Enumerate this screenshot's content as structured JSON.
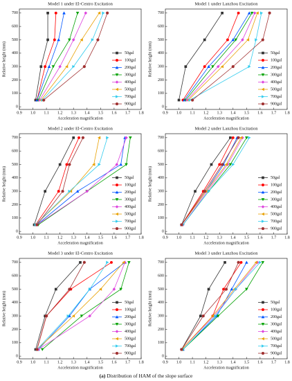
{
  "chart_data": [
    {
      "type": "line",
      "title": "Model 1 under El-Centro Excitation",
      "x_label": "Acceleration magnification",
      "y_label": "Relative height (mm)",
      "xlim": [
        0.9,
        1.8
      ],
      "ylim": [
        -20,
        730
      ],
      "xticks": [
        0.9,
        {
          "value": 1,
          "label": "1.0"
        },
        1.1,
        1.2,
        1.3,
        1.4,
        1.5,
        1.6,
        1.7,
        1.8
      ],
      "yticks": [
        0,
        100,
        200,
        300,
        400,
        500,
        600,
        700
      ],
      "legend": "lower right",
      "y": [
        50,
        300,
        500,
        700
      ],
      "series": [
        {
          "name": "50gal",
          "color": "#333333",
          "x": [
            1.02,
            1.06,
            1.11,
            1.11
          ]
        },
        {
          "name": "100gal",
          "color": "#ff0000",
          "x": [
            1.03,
            1.09,
            1.16,
            1.17
          ]
        },
        {
          "name": "200gal",
          "color": "#0055ff",
          "x": [
            1.03,
            1.12,
            1.19,
            1.23
          ]
        },
        {
          "name": "300gal",
          "color": "#00a000",
          "x": [
            1.04,
            1.15,
            1.27,
            1.33
          ]
        },
        {
          "name": "400gal",
          "color": "#dd44dd",
          "x": [
            1.05,
            1.2,
            1.3,
            1.39
          ]
        },
        {
          "name": "500gal",
          "color": "#e8a000",
          "x": [
            1.06,
            1.25,
            1.36,
            1.49
          ]
        },
        {
          "name": "700gal",
          "color": "#33ccee",
          "x": [
            1.07,
            1.3,
            1.44,
            1.52
          ]
        },
        {
          "name": "900gal",
          "color": "#a03030",
          "x": [
            1.08,
            1.38,
            1.48,
            1.55
          ]
        }
      ]
    },
    {
      "type": "line",
      "title": "Model 1 under Lanzhou Excitation",
      "x_label": "Acceleration magnification",
      "y_label": "Relative height (mm)",
      "xlim": [
        0.9,
        1.8
      ],
      "ylim": [
        -20,
        730
      ],
      "xticks": [
        0.9,
        {
          "value": 1,
          "label": "1.0"
        },
        1.1,
        1.2,
        1.3,
        1.4,
        1.5,
        1.6,
        1.7,
        1.8
      ],
      "yticks": [
        0,
        100,
        200,
        300,
        400,
        500,
        600,
        700
      ],
      "legend": "lower right",
      "y": [
        50,
        300,
        500,
        700
      ],
      "series": [
        {
          "name": "50gal",
          "color": "#333333",
          "x": [
            1.0,
            1.05,
            1.19,
            1.32
          ]
        },
        {
          "name": "100gal",
          "color": "#ff0000",
          "x": [
            1.03,
            1.19,
            1.36,
            1.44
          ]
        },
        {
          "name": "200gal",
          "color": "#0055ff",
          "x": [
            1.04,
            1.22,
            1.4,
            1.52
          ]
        },
        {
          "name": "300gal",
          "color": "#00a000",
          "x": [
            1.05,
            1.25,
            1.42,
            1.54
          ]
        },
        {
          "name": "400gal",
          "color": "#dd44dd",
          "x": [
            1.06,
            1.29,
            1.47,
            1.56
          ]
        },
        {
          "name": "500gal",
          "color": "#e8a000",
          "x": [
            1.07,
            1.32,
            1.51,
            1.58
          ]
        },
        {
          "name": "700gal",
          "color": "#33ccee",
          "x": [
            1.08,
            1.52,
            1.57,
            1.61
          ]
        },
        {
          "name": "900gal",
          "color": "#a03030",
          "x": [
            1.1,
            1.4,
            1.62,
            1.67
          ]
        }
      ]
    },
    {
      "type": "line",
      "title": "Model 2 under El-Centro Excitation",
      "x_label": "Acceleration magnification",
      "y_label": "Relative height (mm)",
      "xlim": [
        0.9,
        1.8
      ],
      "ylim": [
        -20,
        730
      ],
      "xticks": [
        0.9,
        {
          "value": 1,
          "label": "1.0"
        },
        1.1,
        1.2,
        1.3,
        1.4,
        1.5,
        1.6,
        1.7,
        1.8
      ],
      "yticks": [
        0,
        100,
        200,
        300,
        400,
        500,
        600,
        700
      ],
      "legend": "lower right",
      "y": [
        50,
        300,
        500,
        700
      ],
      "series": [
        {
          "name": "50gal",
          "color": "#333333",
          "x": [
            1.01,
            1.09,
            1.2,
            1.3
          ]
        },
        {
          "name": "100gal",
          "color": "#ff0000",
          "x": [
            1.02,
            1.19,
            1.25,
            1.34
          ]
        },
        {
          "name": "200gal",
          "color": "#0055ff",
          "x": [
            1.03,
            1.33,
            1.65,
            1.68
          ]
        },
        {
          "name": "300gal",
          "color": "#00a000",
          "x": [
            1.04,
            1.4,
            1.69,
            1.72
          ]
        },
        {
          "name": "400gal",
          "color": "#dd44dd",
          "x": [
            1.03,
            1.4,
            1.62,
            1.69
          ]
        },
        {
          "name": "500gal",
          "color": "#e8a000",
          "x": [
            1.02,
            1.28,
            1.45,
            1.49
          ]
        },
        {
          "name": "700gal",
          "color": "#33ccee",
          "x": [
            1.02,
            1.27,
            1.49,
            1.55
          ]
        },
        {
          "name": "900gal",
          "color": "#a03030",
          "x": [
            1.03,
            1.22,
            1.27,
            1.37
          ]
        }
      ]
    },
    {
      "type": "line",
      "title": "Model 2 under Lanzhou Excitation",
      "x_label": "Acceleration magnification",
      "y_label": "Relative height (mm)",
      "xlim": [
        0.9,
        1.8
      ],
      "ylim": [
        -20,
        730
      ],
      "xticks": [
        0.9,
        {
          "value": 1,
          "label": "1.0"
        },
        1.1,
        1.2,
        1.3,
        1.4,
        1.5,
        1.6,
        1.7,
        1.8
      ],
      "yticks": [
        0,
        100,
        200,
        300,
        400,
        500,
        600,
        700
      ],
      "legend": "lower right",
      "y": [
        50,
        300,
        500,
        700
      ],
      "series": [
        {
          "name": "50gal",
          "color": "#333333",
          "x": [
            1.02,
            1.12,
            1.24,
            1.38
          ]
        },
        {
          "name": "100gal",
          "color": "#ff0000",
          "x": [
            1.02,
            1.18,
            1.3,
            1.4
          ]
        },
        {
          "name": "200gal",
          "color": "#0055ff",
          "x": [
            1.02,
            1.2,
            1.33,
            1.43
          ]
        },
        {
          "name": "300gal",
          "color": "#00a000",
          "x": [
            1.03,
            1.22,
            1.38,
            1.5
          ]
        },
        {
          "name": "400gal",
          "color": "#dd44dd",
          "x": [
            1.03,
            1.21,
            1.36,
            1.47
          ]
        },
        {
          "name": "500gal",
          "color": "#e8a000",
          "x": [
            1.02,
            1.2,
            1.35,
            1.46
          ]
        },
        {
          "name": "700gal",
          "color": "#33ccee",
          "x": [
            1.03,
            1.22,
            1.4,
            1.52
          ]
        },
        {
          "name": "900gal",
          "color": "#a03030",
          "x": [
            1.02,
            1.19,
            1.32,
            1.44
          ]
        }
      ]
    },
    {
      "type": "line",
      "title": "Model 3 under El-Centro Excitation",
      "x_label": "Acceleration magnification",
      "y_label": "Relative height (mm)",
      "xlim": [
        0.9,
        1.8
      ],
      "ylim": [
        -20,
        730
      ],
      "xticks": [
        0.9,
        {
          "value": 1,
          "label": "1.0"
        },
        1.1,
        1.2,
        1.3,
        1.4,
        1.5,
        1.6,
        1.7,
        1.8
      ],
      "yticks": [
        0,
        100,
        200,
        300,
        400,
        500,
        600,
        700
      ],
      "legend": "lower right",
      "y": [
        50,
        300,
        500,
        700
      ],
      "series": [
        {
          "name": "50gal",
          "color": "#333333",
          "x": [
            1.02,
            1.09,
            1.17,
            1.35
          ]
        },
        {
          "name": "100gal",
          "color": "#ff0000",
          "x": [
            1.03,
            1.1,
            1.28,
            1.58
          ]
        },
        {
          "name": "200gal",
          "color": "#0055ff",
          "x": [
            1.04,
            1.27,
            1.42,
            1.68
          ]
        },
        {
          "name": "300gal",
          "color": "#00a000",
          "x": [
            1.07,
            1.36,
            1.65,
            1.71
          ]
        },
        {
          "name": "400gal",
          "color": "#dd44dd",
          "x": [
            1.04,
            1.42,
            1.6,
            1.68
          ]
        },
        {
          "name": "500gal",
          "color": "#e8a000",
          "x": [
            1.03,
            1.3,
            1.5,
            1.67
          ]
        },
        {
          "name": "700gal",
          "color": "#33ccee",
          "x": [
            1.03,
            1.26,
            1.42,
            1.55
          ]
        },
        {
          "name": "900gal",
          "color": "#a03030",
          "x": [
            1.03,
            1.1,
            1.27,
            1.38
          ]
        }
      ]
    },
    {
      "type": "line",
      "title": "Model 3 under Lanzhou Excitation",
      "x_label": "Acceleration magnification",
      "y_label": "Relative height (mm)",
      "xlim": [
        0.9,
        1.8
      ],
      "ylim": [
        -20,
        730
      ],
      "xticks": [
        0.9,
        {
          "value": 1,
          "label": "1.0"
        },
        1.1,
        1.2,
        1.3,
        1.4,
        1.5,
        1.6,
        1.7,
        1.8
      ],
      "yticks": [
        0,
        100,
        200,
        300,
        400,
        500,
        600,
        700
      ],
      "legend": "lower right",
      "y": [
        50,
        300,
        500,
        700
      ],
      "series": [
        {
          "name": "50gal",
          "color": "#333333",
          "x": [
            1.02,
            1.16,
            1.22,
            1.34
          ]
        },
        {
          "name": "100gal",
          "color": "#ff0000",
          "x": [
            1.02,
            1.25,
            1.33,
            1.46
          ]
        },
        {
          "name": "200gal",
          "color": "#0055ff",
          "x": [
            1.03,
            1.28,
            1.39,
            1.5
          ]
        },
        {
          "name": "300gal",
          "color": "#00a000",
          "x": [
            1.03,
            1.29,
            1.5,
            1.62
          ]
        },
        {
          "name": "400gal",
          "color": "#dd44dd",
          "x": [
            1.02,
            1.26,
            1.42,
            1.58
          ]
        },
        {
          "name": "500gal",
          "color": "#e8a000",
          "x": [
            1.02,
            1.25,
            1.41,
            1.57
          ]
        },
        {
          "name": "700gal",
          "color": "#33ccee",
          "x": [
            1.03,
            1.27,
            1.42,
            1.6
          ]
        },
        {
          "name": "900gal",
          "color": "#a03030",
          "x": [
            1.02,
            1.18,
            1.35,
            1.44
          ]
        }
      ]
    }
  ],
  "caption": {
    "label": "(a)",
    "text": "Distribution of HAM of the slope surface"
  }
}
